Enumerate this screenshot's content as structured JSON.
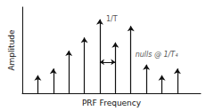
{
  "chart_data": {
    "type": "stem",
    "xlabel": "PRF Frequency",
    "ylabel": "Amplitude",
    "x": [
      1,
      2,
      3,
      4,
      5,
      6,
      7,
      8,
      9,
      10
    ],
    "values": [
      0.22,
      0.3,
      0.52,
      0.68,
      0.9,
      0.62,
      0.82,
      0.35,
      0.22,
      0.3
    ],
    "color": "#111111",
    "xlim": [
      0,
      11.5
    ],
    "ylim": [
      0,
      1.05
    ],
    "tick_labels": false,
    "grid": false,
    "spacing_arrow": {
      "x": [
        5,
        6
      ],
      "y": 0.38
    },
    "annotations": [
      {
        "text": "1/T",
        "x": 5,
        "y": 0.9
      },
      {
        "text": "nulls @ 1/T₄",
        "x": 9,
        "y": 0.22
      }
    ]
  }
}
